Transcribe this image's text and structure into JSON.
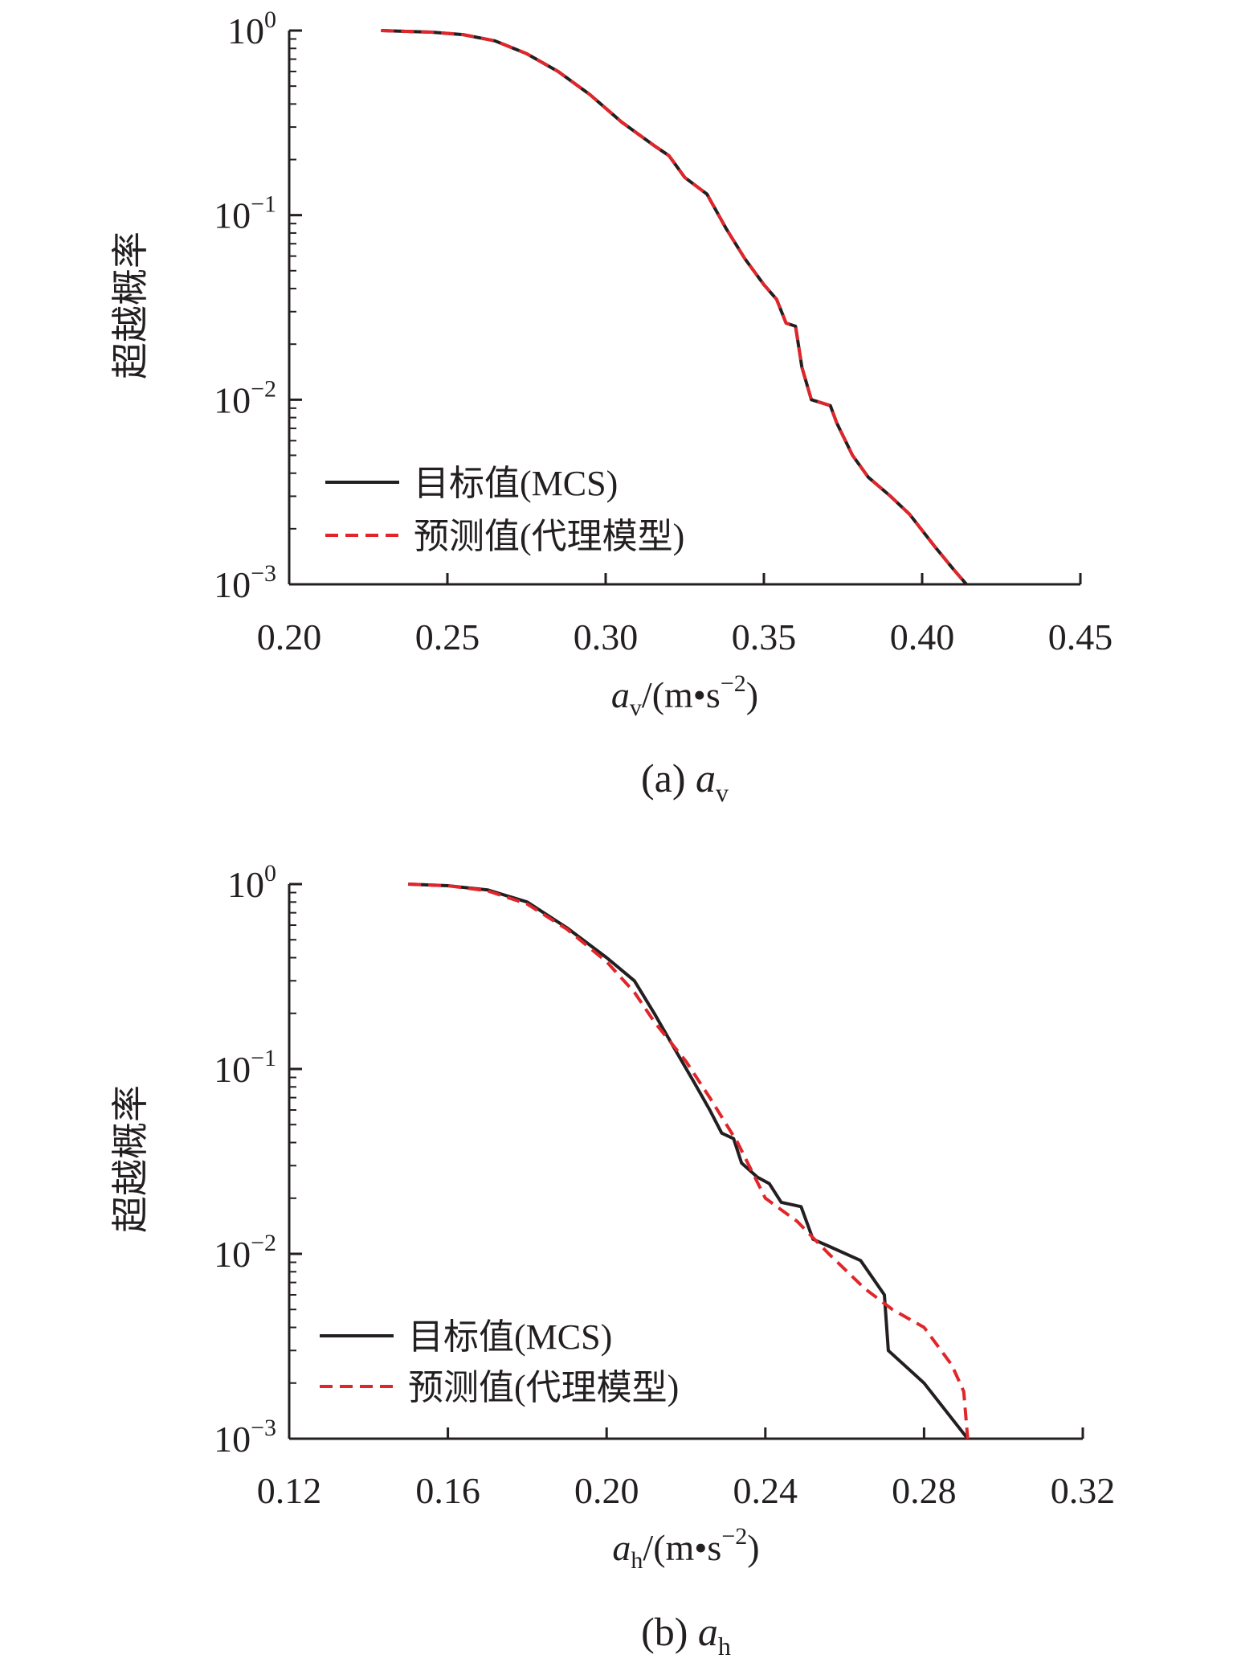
{
  "chart_data": [
    {
      "type": "line",
      "log_y": true,
      "ylim": [
        0.001,
        1
      ],
      "xlim": [
        0.2,
        0.45
      ],
      "x_ticks": [
        "0.20",
        "0.25",
        "0.30",
        "0.35",
        "0.40",
        "0.45"
      ],
      "x_tick_values": [
        0.2,
        0.25,
        0.3,
        0.35,
        0.4,
        0.45
      ],
      "y_ticks": [
        {
          "base": "10",
          "exp": "0",
          "value": 1
        },
        {
          "base": "10",
          "exp": "−1",
          "value": 0.1
        },
        {
          "base": "10",
          "exp": "−2",
          "value": 0.01
        },
        {
          "base": "10",
          "exp": "−3",
          "value": 0.001
        }
      ],
      "ylabel": "超越概率",
      "xlabel": {
        "main": "a",
        "sub": "v",
        "unit": "/(m•s",
        "unit_exp": "−2",
        "close": ")"
      },
      "caption": {
        "prefix": "(a)",
        "main": "a",
        "sub": "v"
      },
      "legend": {
        "placement": "lower-left"
      },
      "series": [
        {
          "name": "目标值(MCS)",
          "color": "#231f20",
          "style": "solid",
          "points": [
            [
              0.229,
              1.0
            ],
            [
              0.245,
              0.98
            ],
            [
              0.255,
              0.95
            ],
            [
              0.265,
              0.88
            ],
            [
              0.275,
              0.75
            ],
            [
              0.285,
              0.6
            ],
            [
              0.295,
              0.45
            ],
            [
              0.305,
              0.32
            ],
            [
              0.315,
              0.24
            ],
            [
              0.32,
              0.21
            ],
            [
              0.325,
              0.16
            ],
            [
              0.332,
              0.13
            ],
            [
              0.338,
              0.085
            ],
            [
              0.344,
              0.058
            ],
            [
              0.35,
              0.042
            ],
            [
              0.354,
              0.035
            ],
            [
              0.357,
              0.026
            ],
            [
              0.36,
              0.025
            ],
            [
              0.362,
              0.015
            ],
            [
              0.365,
              0.01
            ],
            [
              0.371,
              0.0093
            ],
            [
              0.373,
              0.0075
            ],
            [
              0.378,
              0.005
            ],
            [
              0.383,
              0.0038
            ],
            [
              0.39,
              0.003
            ],
            [
              0.396,
              0.0024
            ],
            [
              0.404,
              0.0016
            ],
            [
              0.41,
              0.0012
            ],
            [
              0.414,
              0.001
            ]
          ]
        },
        {
          "name": "预测值(代理模型)",
          "color": "#e0262b",
          "style": "dashed",
          "points": [
            [
              0.229,
              1.0
            ],
            [
              0.245,
              0.98
            ],
            [
              0.255,
              0.95
            ],
            [
              0.265,
              0.88
            ],
            [
              0.275,
              0.75
            ],
            [
              0.285,
              0.6
            ],
            [
              0.295,
              0.45
            ],
            [
              0.305,
              0.32
            ],
            [
              0.315,
              0.24
            ],
            [
              0.32,
              0.21
            ],
            [
              0.325,
              0.16
            ],
            [
              0.332,
              0.13
            ],
            [
              0.338,
              0.085
            ],
            [
              0.344,
              0.058
            ],
            [
              0.35,
              0.042
            ],
            [
              0.354,
              0.035
            ],
            [
              0.357,
              0.026
            ],
            [
              0.36,
              0.025
            ],
            [
              0.362,
              0.015
            ],
            [
              0.365,
              0.01
            ],
            [
              0.371,
              0.0093
            ],
            [
              0.373,
              0.0075
            ],
            [
              0.378,
              0.005
            ],
            [
              0.383,
              0.0038
            ],
            [
              0.39,
              0.003
            ],
            [
              0.396,
              0.0024
            ],
            [
              0.404,
              0.0016
            ],
            [
              0.41,
              0.0012
            ],
            [
              0.414,
              0.001
            ]
          ]
        }
      ]
    },
    {
      "type": "line",
      "log_y": true,
      "ylim": [
        0.001,
        1
      ],
      "xlim": [
        0.12,
        0.32
      ],
      "x_ticks": [
        "0.12",
        "0.16",
        "0.20",
        "0.24",
        "0.28",
        "0.32"
      ],
      "x_tick_values": [
        0.12,
        0.16,
        0.2,
        0.24,
        0.28,
        0.32
      ],
      "y_ticks": [
        {
          "base": "10",
          "exp": "0",
          "value": 1
        },
        {
          "base": "10",
          "exp": "−1",
          "value": 0.1
        },
        {
          "base": "10",
          "exp": "−2",
          "value": 0.01
        },
        {
          "base": "10",
          "exp": "−3",
          "value": 0.001
        }
      ],
      "ylabel": "超越概率",
      "xlabel": {
        "main": "a",
        "sub": "h",
        "unit": "/(m•s",
        "unit_exp": "−2",
        "close": ")"
      },
      "caption": {
        "prefix": "(b)",
        "main": "a",
        "sub": "h"
      },
      "legend": {
        "placement": "lower-left"
      },
      "series": [
        {
          "name": "目标值(MCS)",
          "color": "#231f20",
          "style": "solid",
          "points": [
            [
              0.15,
              1.0
            ],
            [
              0.16,
              0.98
            ],
            [
              0.17,
              0.93
            ],
            [
              0.18,
              0.8
            ],
            [
              0.19,
              0.58
            ],
            [
              0.2,
              0.4
            ],
            [
              0.207,
              0.3
            ],
            [
              0.212,
              0.2
            ],
            [
              0.217,
              0.13
            ],
            [
              0.222,
              0.085
            ],
            [
              0.226,
              0.06
            ],
            [
              0.229,
              0.045
            ],
            [
              0.232,
              0.042
            ],
            [
              0.234,
              0.031
            ],
            [
              0.238,
              0.026
            ],
            [
              0.241,
              0.024
            ],
            [
              0.244,
              0.019
            ],
            [
              0.249,
              0.018
            ],
            [
              0.252,
              0.012
            ],
            [
              0.256,
              0.011
            ],
            [
              0.264,
              0.0092
            ],
            [
              0.27,
              0.006
            ],
            [
              0.271,
              0.003
            ],
            [
              0.28,
              0.002
            ],
            [
              0.291,
              0.001
            ]
          ]
        },
        {
          "name": "预测值(代理模型)",
          "color": "#e0262b",
          "style": "dashed",
          "points": [
            [
              0.15,
              1.0
            ],
            [
              0.16,
              0.98
            ],
            [
              0.17,
              0.92
            ],
            [
              0.18,
              0.78
            ],
            [
              0.19,
              0.57
            ],
            [
              0.2,
              0.38
            ],
            [
              0.207,
              0.26
            ],
            [
              0.212,
              0.18
            ],
            [
              0.22,
              0.11
            ],
            [
              0.226,
              0.07
            ],
            [
              0.233,
              0.04
            ],
            [
              0.24,
              0.02
            ],
            [
              0.248,
              0.015
            ],
            [
              0.256,
              0.01
            ],
            [
              0.265,
              0.0065
            ],
            [
              0.272,
              0.005
            ],
            [
              0.28,
              0.004
            ],
            [
              0.287,
              0.0025
            ],
            [
              0.29,
              0.0018
            ],
            [
              0.291,
              0.001
            ]
          ]
        }
      ]
    }
  ]
}
